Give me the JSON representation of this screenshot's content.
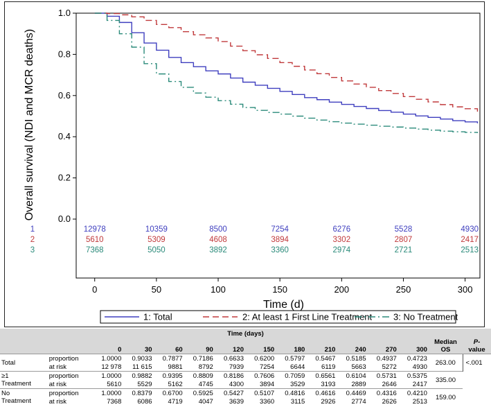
{
  "chart_data": {
    "type": "line",
    "xlabel": "Time (d)",
    "ylabel": "Overall survival (NDI and MCR deaths)",
    "xlim": [
      -15,
      312
    ],
    "ylim": [
      0,
      1.0
    ],
    "x_ticks": [
      0,
      50,
      100,
      150,
      200,
      250,
      300
    ],
    "y_ticks": [
      "0.0",
      "0.2",
      "0.4",
      "0.6",
      "0.8",
      "1.0"
    ],
    "series": [
      {
        "id": "1",
        "name": "1: Total",
        "color": "#3f3fbf",
        "dash": "solid",
        "x": [
          0,
          10,
          20,
          30,
          40,
          50,
          60,
          70,
          80,
          90,
          100,
          110,
          120,
          130,
          140,
          150,
          160,
          170,
          180,
          190,
          200,
          210,
          220,
          230,
          240,
          250,
          260,
          270,
          280,
          290,
          300,
          310
        ],
        "y": [
          1.0,
          0.985,
          0.955,
          0.905,
          0.855,
          0.82,
          0.785,
          0.76,
          0.74,
          0.72,
          0.705,
          0.685,
          0.665,
          0.65,
          0.635,
          0.62,
          0.605,
          0.59,
          0.58,
          0.568,
          0.557,
          0.547,
          0.537,
          0.527,
          0.519,
          0.51,
          0.501,
          0.494,
          0.486,
          0.478,
          0.472,
          0.465
        ]
      },
      {
        "id": "2",
        "name": "2: At least 1 First Line Treatment",
        "color": "#c0393b",
        "dash": "long-dash",
        "x": [
          0,
          10,
          20,
          30,
          40,
          50,
          60,
          70,
          80,
          90,
          100,
          110,
          120,
          130,
          140,
          150,
          160,
          170,
          180,
          190,
          200,
          210,
          220,
          230,
          240,
          250,
          260,
          270,
          280,
          290,
          300,
          310
        ],
        "y": [
          1.0,
          0.998,
          0.992,
          0.982,
          0.965,
          0.945,
          0.93,
          0.91,
          0.895,
          0.88,
          0.862,
          0.84,
          0.818,
          0.798,
          0.78,
          0.76,
          0.742,
          0.724,
          0.706,
          0.688,
          0.671,
          0.656,
          0.64,
          0.624,
          0.61,
          0.595,
          0.582,
          0.569,
          0.556,
          0.545,
          0.536,
          0.522
        ]
      },
      {
        "id": "3",
        "name": "3: No Treatment",
        "color": "#2a8a7a",
        "dash": "dash-dot",
        "x": [
          0,
          10,
          20,
          30,
          40,
          50,
          60,
          70,
          80,
          90,
          100,
          110,
          120,
          130,
          140,
          150,
          160,
          170,
          180,
          190,
          200,
          210,
          220,
          230,
          240,
          250,
          260,
          270,
          280,
          290,
          300,
          310
        ],
        "y": [
          1.0,
          0.965,
          0.9,
          0.835,
          0.755,
          0.705,
          0.668,
          0.64,
          0.612,
          0.592,
          0.575,
          0.558,
          0.542,
          0.528,
          0.518,
          0.51,
          0.5,
          0.49,
          0.481,
          0.473,
          0.466,
          0.461,
          0.456,
          0.451,
          0.447,
          0.442,
          0.437,
          0.432,
          0.427,
          0.424,
          0.421,
          0.418
        ]
      }
    ],
    "at_risk": {
      "times": [
        0,
        50,
        100,
        150,
        200,
        250,
        300
      ],
      "rows": [
        {
          "id": "1",
          "values": [
            "12978",
            "10359",
            "8500",
            "7254",
            "6276",
            "5528",
            "4930"
          ]
        },
        {
          "id": "2",
          "values": [
            "5610",
            "5309",
            "4608",
            "3894",
            "3302",
            "2807",
            "2417"
          ]
        },
        {
          "id": "3",
          "values": [
            "7368",
            "5050",
            "3892",
            "3360",
            "2974",
            "2721",
            "2513"
          ]
        }
      ]
    },
    "legend": {
      "placement": "bottom"
    }
  },
  "table": {
    "time_header": "Time (days)",
    "columns": [
      "0",
      "30",
      "60",
      "90",
      "120",
      "150",
      "180",
      "210",
      "240",
      "270",
      "300"
    ],
    "median_header_line1": "Median",
    "median_header_line2": "OS",
    "pvalue_header_line1": "P-",
    "pvalue_header_line2": "value",
    "pvalue": "<.001",
    "groups": [
      {
        "label_line1": "Total",
        "label_line2": "",
        "proportion_label": "proportion",
        "at_risk_label": "at risk",
        "proportion": [
          "1.0000",
          "0.9033",
          "0.7877",
          "0.7186",
          "0.6633",
          "0.6200",
          "0.5797",
          "0.5467",
          "0.5185",
          "0.4937",
          "0.4723"
        ],
        "at_risk": [
          "12 978",
          "11 615",
          "9881",
          "8792",
          "7939",
          "7254",
          "6644",
          "6119",
          "5663",
          "5272",
          "4930"
        ],
        "median_os": "263.00"
      },
      {
        "label_line1": "≥1",
        "label_line2": "Treatment",
        "proportion_label": "proportion",
        "at_risk_label": "at risk",
        "proportion": [
          "1.0000",
          "0.9882",
          "0.9395",
          "0.8809",
          "0.8186",
          "0.7606",
          "0.7059",
          "0.6561",
          "0.6104",
          "0.5731",
          "0.5375"
        ],
        "at_risk": [
          "5610",
          "5529",
          "5162",
          "4745",
          "4300",
          "3894",
          "3529",
          "3193",
          "2889",
          "2646",
          "2417"
        ],
        "median_os": "335.00"
      },
      {
        "label_line1": "No",
        "label_line2": "Treatment",
        "proportion_label": "proportion",
        "at_risk_label": "at risk",
        "proportion": [
          "1.0000",
          "0.8379",
          "0.6700",
          "0.5925",
          "0.5427",
          "0.5107",
          "0.4816",
          "0.4616",
          "0.4469",
          "0.4316",
          "0.4210"
        ],
        "at_risk": [
          "7368",
          "6086",
          "4719",
          "4047",
          "3639",
          "3360",
          "3115",
          "2926",
          "2774",
          "2626",
          "2513"
        ],
        "median_os": "159.00"
      }
    ]
  }
}
